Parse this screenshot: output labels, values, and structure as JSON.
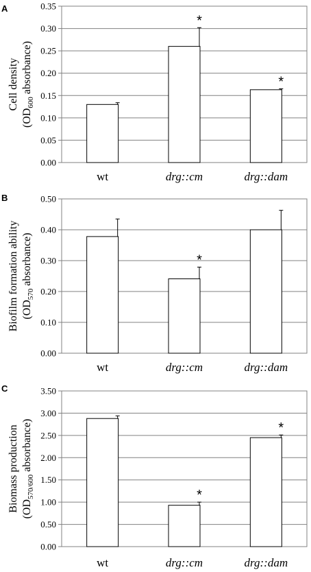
{
  "chart_data": [
    {
      "type": "bar",
      "panel": "A",
      "categories": [
        "wt",
        "drg::cm",
        "drg::dam"
      ],
      "category_italic": [
        false,
        true,
        true
      ],
      "values": [
        0.13,
        0.26,
        0.163
      ],
      "errors": [
        0.004,
        0.042,
        0.002
      ],
      "significant": [
        false,
        true,
        true
      ],
      "significance_marker": "*",
      "ylabel_line1": "Cell density",
      "ylabel_line2_pre": "(OD",
      "ylabel_line2_sub": "600",
      "ylabel_line2_post": " absorbance)",
      "ylim": [
        0,
        0.35
      ],
      "yticks": [
        0,
        0.05,
        0.1,
        0.15,
        0.2,
        0.25,
        0.3,
        0.35
      ],
      "ytick_labels": [
        "0.00",
        "0.05",
        "0.10",
        "0.15",
        "0.20",
        "0.25",
        "0.30",
        "0.35"
      ],
      "grid": true
    },
    {
      "type": "bar",
      "panel": "B",
      "categories": [
        "wt",
        "drg::cm",
        "drg::dam"
      ],
      "category_italic": [
        false,
        true,
        true
      ],
      "values": [
        0.378,
        0.241,
        0.4
      ],
      "errors": [
        0.057,
        0.038,
        0.063
      ],
      "significant": [
        false,
        true,
        false
      ],
      "significance_marker": "*",
      "ylabel_line1": "Biofilm formation ability",
      "ylabel_line2_pre": "(OD",
      "ylabel_line2_sub": "570",
      "ylabel_line2_post": " absorbance)",
      "ylim": [
        0,
        0.5
      ],
      "yticks": [
        0,
        0.1,
        0.2,
        0.3,
        0.4,
        0.5
      ],
      "ytick_labels": [
        "0.00",
        "0.10",
        "0.20",
        "0.30",
        "0.40",
        "0.50"
      ],
      "grid": true
    },
    {
      "type": "bar",
      "panel": "C",
      "categories": [
        "wt",
        "drg::cm",
        "drg::dam"
      ],
      "category_italic": [
        false,
        true,
        true
      ],
      "values": [
        2.88,
        0.93,
        2.45
      ],
      "errors": [
        0.06,
        0.07,
        0.06
      ],
      "significant": [
        false,
        true,
        true
      ],
      "significance_marker": "*",
      "ylabel_line1": "Biomass production",
      "ylabel_line2_pre": "(OD",
      "ylabel_line2_sub": "570/600",
      "ylabel_line2_post": " absorbance)",
      "ylim": [
        0,
        3.5
      ],
      "yticks": [
        0,
        0.5,
        1,
        1.5,
        2,
        2.5,
        3,
        3.5
      ],
      "ytick_labels": [
        "0.00",
        "0.50",
        "1.00",
        "1.50",
        "2.00",
        "2.50",
        "3.00",
        "3.50"
      ],
      "grid": true
    }
  ]
}
